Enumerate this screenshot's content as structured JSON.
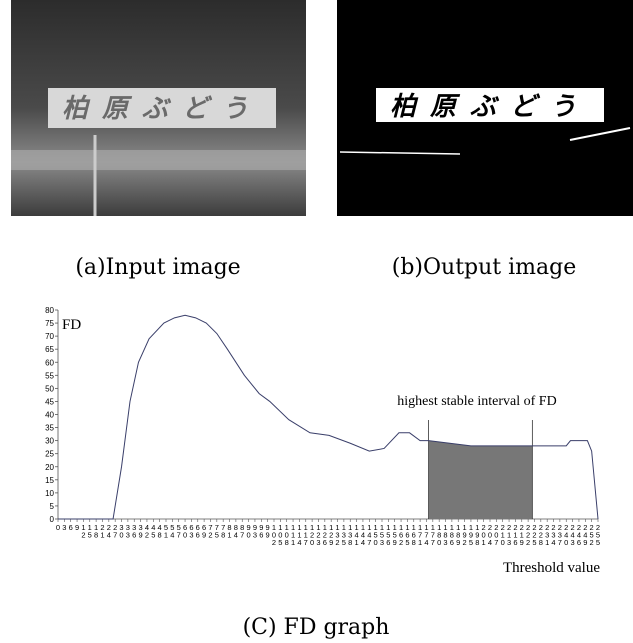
{
  "figure": {
    "sign_text": "柏原ぶどう",
    "caption_a": "(a)Input image",
    "caption_b": "(b)Output image",
    "caption_c": "(C) FD graph"
  },
  "chart_data": {
    "type": "line",
    "y_label": "FD",
    "x_label": "Threshold value",
    "x": [
      0,
      26,
      30,
      34,
      38,
      43,
      50,
      55,
      60,
      65,
      70,
      75,
      80,
      88,
      95,
      100,
      109,
      119,
      128,
      138,
      147,
      154,
      161,
      166,
      171,
      175,
      185,
      195,
      205,
      215,
      224,
      232,
      240,
      242,
      250,
      252,
      255
    ],
    "values": [
      0,
      0,
      20,
      45,
      60,
      69,
      75,
      77,
      78,
      77,
      75,
      71,
      65,
      55,
      48,
      45,
      38,
      33,
      32,
      29,
      26,
      27,
      33,
      33,
      30,
      30,
      29,
      28,
      28,
      28,
      28,
      28,
      28,
      30,
      30,
      26,
      0
    ],
    "color": "#3a3f6a",
    "highlight": {
      "label": "highest stable interval of FD",
      "range": [
        175,
        224
      ],
      "color": "#777777"
    },
    "xlim": [
      0,
      255
    ],
    "ylim": [
      0,
      80
    ],
    "xticks": [
      0,
      3,
      6,
      9,
      12,
      15,
      18,
      21,
      24,
      27,
      30,
      33,
      36,
      39,
      42,
      45,
      48,
      51,
      54,
      57,
      60,
      63,
      66,
      69,
      72,
      75,
      78,
      81,
      84,
      87,
      90,
      93,
      96,
      99,
      102,
      105,
      108,
      111,
      114,
      117,
      120,
      123,
      126,
      129,
      132,
      135,
      138,
      141,
      144,
      147,
      150,
      153,
      156,
      159,
      162,
      165,
      168,
      171,
      174,
      177,
      180,
      183,
      186,
      189,
      192,
      195,
      198,
      201,
      204,
      207,
      210,
      213,
      216,
      219,
      222,
      225,
      228,
      231,
      234,
      237,
      240,
      243,
      246,
      249,
      252,
      255
    ],
    "yticks": [
      0,
      5,
      10,
      15,
      20,
      25,
      30,
      35,
      40,
      45,
      50,
      55,
      60,
      65,
      70,
      75,
      80
    ]
  }
}
